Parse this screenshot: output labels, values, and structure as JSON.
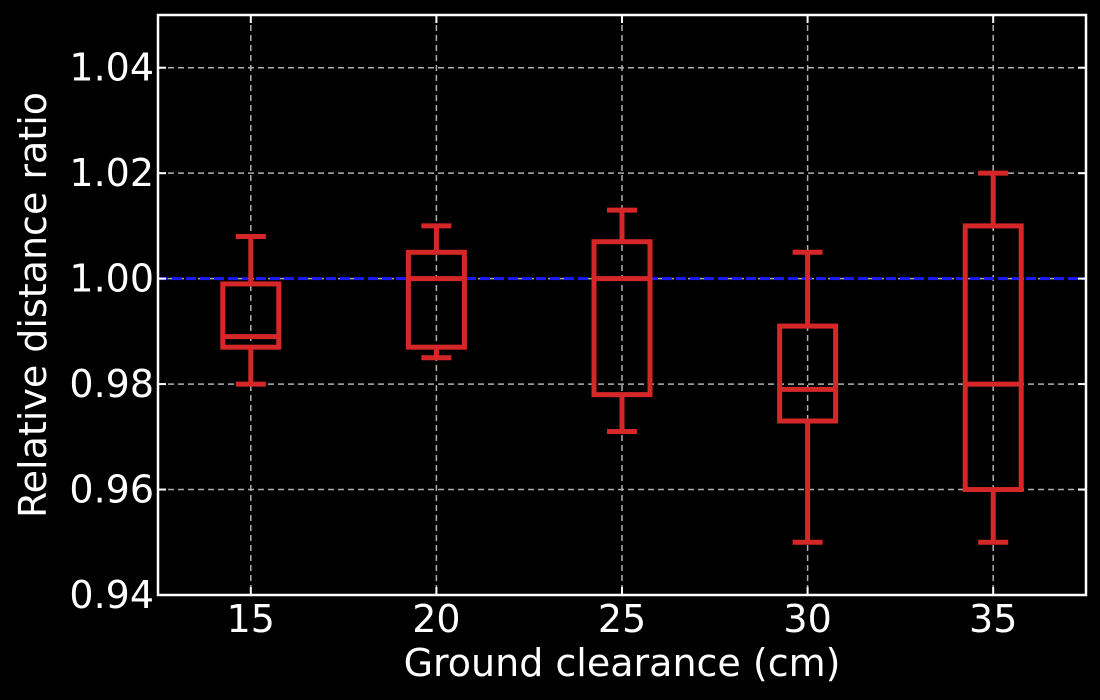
{
  "chart_data": {
    "type": "box",
    "title": "",
    "xlabel": "Ground clearance (cm)",
    "ylabel": "Relative distance ratio",
    "categories": [
      "15",
      "20",
      "25",
      "30",
      "35"
    ],
    "ylim": [
      0.94,
      1.05
    ],
    "y_ticks": [
      "0.94",
      "0.96",
      "0.98",
      "1.00",
      "1.02",
      "1.04"
    ],
    "grid": true,
    "reference_line": {
      "y": 1.0,
      "style": "dashed",
      "color": "#1a1aff"
    },
    "box_color": "#d62728",
    "background": "#000000",
    "foreground": "#ffffff",
    "boxes": [
      {
        "category": "15",
        "whisker_low": 0.98,
        "q1": 0.987,
        "median": 0.989,
        "q3": 0.999,
        "whisker_high": 1.008
      },
      {
        "category": "20",
        "whisker_low": 0.985,
        "q1": 0.987,
        "median": 1.0,
        "q3": 1.005,
        "whisker_high": 1.01
      },
      {
        "category": "25",
        "whisker_low": 0.971,
        "q1": 0.978,
        "median": 1.0,
        "q3": 1.007,
        "whisker_high": 1.013
      },
      {
        "category": "30",
        "whisker_low": 0.95,
        "q1": 0.973,
        "median": 0.979,
        "q3": 0.991,
        "whisker_high": 1.005
      },
      {
        "category": "35",
        "whisker_low": 0.95,
        "q1": 0.96,
        "median": 0.98,
        "q3": 1.01,
        "whisker_high": 1.02
      }
    ]
  }
}
